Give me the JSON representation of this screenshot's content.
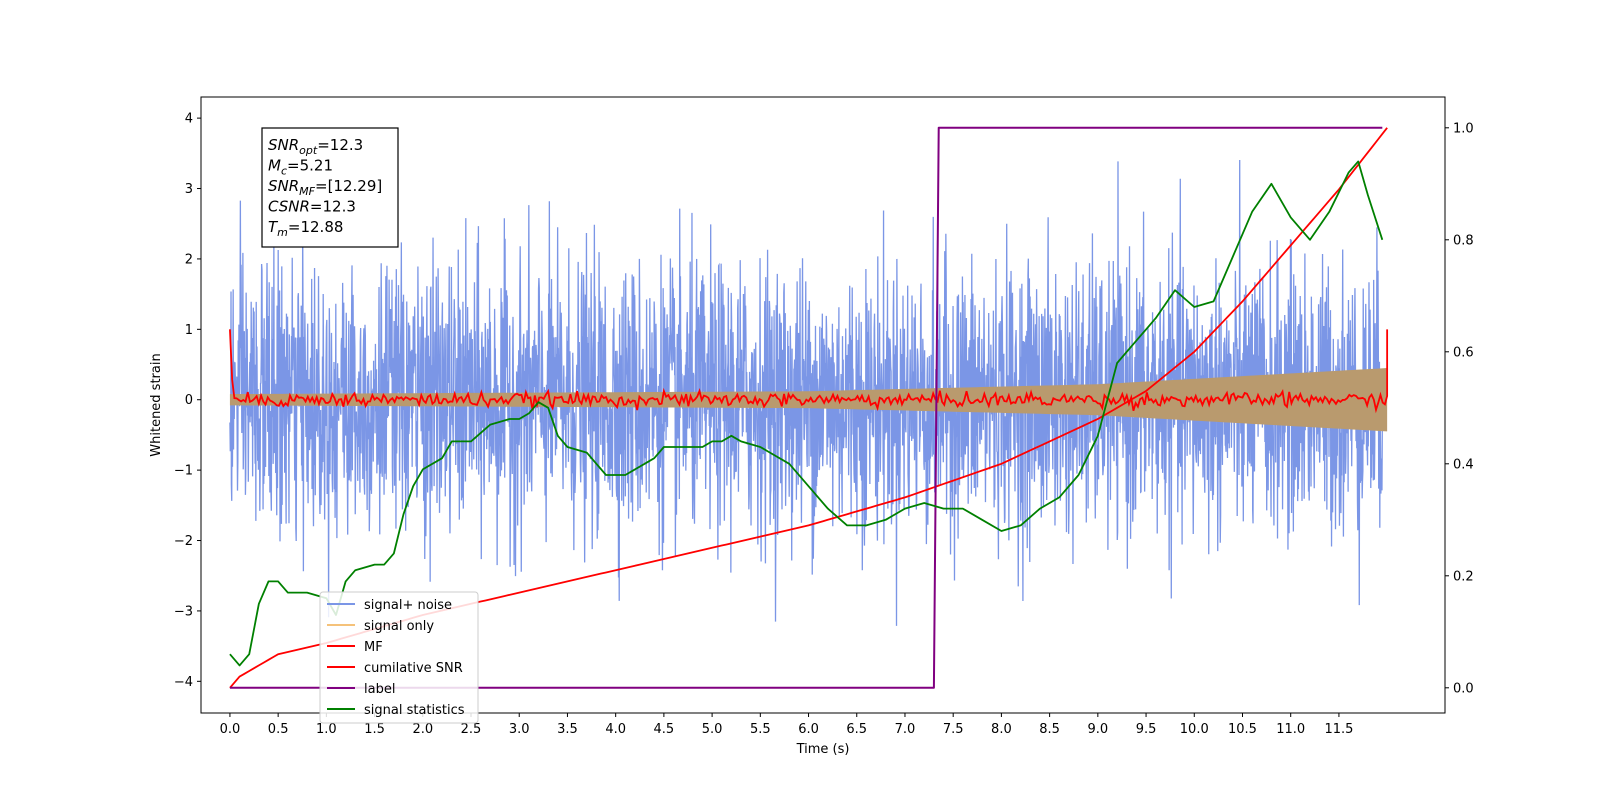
{
  "chart_data": {
    "type": "line",
    "xlabel": "Time (s)",
    "ylabel": "Whitened strain",
    "x_ticks": [
      "0.0",
      "0.5",
      "1.0",
      "1.5",
      "2.0",
      "2.5",
      "3.0",
      "3.5",
      "4.0",
      "4.5",
      "5.0",
      "5.5",
      "6.0",
      "6.5",
      "7.0",
      "7.5",
      "8.0",
      "8.5",
      "9.0",
      "9.5",
      "10.0",
      "10.5",
      "11.0",
      "11.5"
    ],
    "y_ticks": [
      "4",
      "3",
      "2",
      "1",
      "0",
      "−1",
      "−2",
      "−3",
      "−4"
    ],
    "y2_ticks": [
      "1.0",
      "0.8",
      "0.6",
      "0.4",
      "0.2",
      "0.0"
    ],
    "xlim": [
      -0.3,
      12.6
    ],
    "ylim": [
      -4.45,
      4.3
    ],
    "y2lim": [
      -0.045,
      1.055
    ],
    "grid": false,
    "legend_position": "lower-left",
    "series": [
      {
        "name": "signal+ noise",
        "color": "#7b96e6",
        "axis": "left",
        "style": "noise band approx ±1.5 with spikes to ±3.9"
      },
      {
        "name": "signal only",
        "color": "#f5c27a",
        "axis": "left",
        "envelope": {
          "x": [
            0,
            6,
            9,
            12
          ],
          "amp": [
            0.08,
            0.12,
            0.22,
            0.45
          ]
        }
      },
      {
        "name": "MF",
        "color": "#ff0000",
        "axis": "left",
        "style": "fluctuating around 0 with endpoint spikes to 1.0"
      },
      {
        "name": "cumilative SNR",
        "color": "#ff0000",
        "axis": "right",
        "x": [
          0,
          0.1,
          0.5,
          1,
          2,
          3,
          4,
          5,
          6,
          7,
          8,
          9,
          9.5,
          10,
          10.5,
          11,
          11.5,
          12
        ],
        "y": [
          0.0,
          0.02,
          0.06,
          0.08,
          0.13,
          0.17,
          0.21,
          0.25,
          0.29,
          0.34,
          0.4,
          0.48,
          0.53,
          0.6,
          0.69,
          0.79,
          0.89,
          1.0
        ]
      },
      {
        "name": "label",
        "color": "#800080",
        "axis": "right",
        "x": [
          0,
          7.3,
          7.35,
          11.95
        ],
        "y": [
          0.0,
          0.0,
          1.0,
          1.0
        ]
      },
      {
        "name": "signal statistics",
        "color": "#008000",
        "axis": "right",
        "x": [
          0,
          0.1,
          0.2,
          0.3,
          0.4,
          0.5,
          0.6,
          0.8,
          1.0,
          1.1,
          1.2,
          1.3,
          1.5,
          1.6,
          1.7,
          1.8,
          1.9,
          2.0,
          2.2,
          2.3,
          2.5,
          2.7,
          2.9,
          3.0,
          3.1,
          3.2,
          3.3,
          3.4,
          3.5,
          3.7,
          3.9,
          4.1,
          4.3,
          4.4,
          4.5,
          4.7,
          4.9,
          5.0,
          5.1,
          5.2,
          5.3,
          5.5,
          5.6,
          5.8,
          6.0,
          6.2,
          6.4,
          6.6,
          6.8,
          7.0,
          7.2,
          7.4,
          7.6,
          7.8,
          8.0,
          8.2,
          8.4,
          8.6,
          8.8,
          9.0,
          9.2,
          9.4,
          9.6,
          9.8,
          10.0,
          10.2,
          10.4,
          10.6,
          10.8,
          11.0,
          11.2,
          11.4,
          11.6,
          11.7,
          11.8,
          11.95
        ],
        "y": [
          0.06,
          0.04,
          0.06,
          0.15,
          0.19,
          0.19,
          0.17,
          0.17,
          0.16,
          0.13,
          0.19,
          0.21,
          0.22,
          0.22,
          0.24,
          0.31,
          0.36,
          0.39,
          0.41,
          0.44,
          0.44,
          0.47,
          0.48,
          0.48,
          0.49,
          0.51,
          0.5,
          0.45,
          0.43,
          0.42,
          0.38,
          0.38,
          0.4,
          0.41,
          0.43,
          0.43,
          0.43,
          0.44,
          0.44,
          0.45,
          0.44,
          0.43,
          0.42,
          0.4,
          0.36,
          0.32,
          0.29,
          0.29,
          0.3,
          0.32,
          0.33,
          0.32,
          0.32,
          0.3,
          0.28,
          0.29,
          0.32,
          0.34,
          0.38,
          0.45,
          0.58,
          0.62,
          0.66,
          0.71,
          0.68,
          0.69,
          0.77,
          0.85,
          0.9,
          0.84,
          0.8,
          0.85,
          0.92,
          0.94,
          0.88,
          0.8
        ]
      }
    ],
    "annotation": [
      {
        "sym": "SNR",
        "sub": "opt",
        "val": "=12.3"
      },
      {
        "sym": "M",
        "sub": "c",
        "val": "=5.21"
      },
      {
        "sym": "SNR",
        "sub": "MF",
        "val": "=[12.29]"
      },
      {
        "sym": "CSNR",
        "sub": "",
        "val": "=12.3"
      },
      {
        "sym": "T",
        "sub": "m",
        "val": "=12.88"
      }
    ]
  }
}
